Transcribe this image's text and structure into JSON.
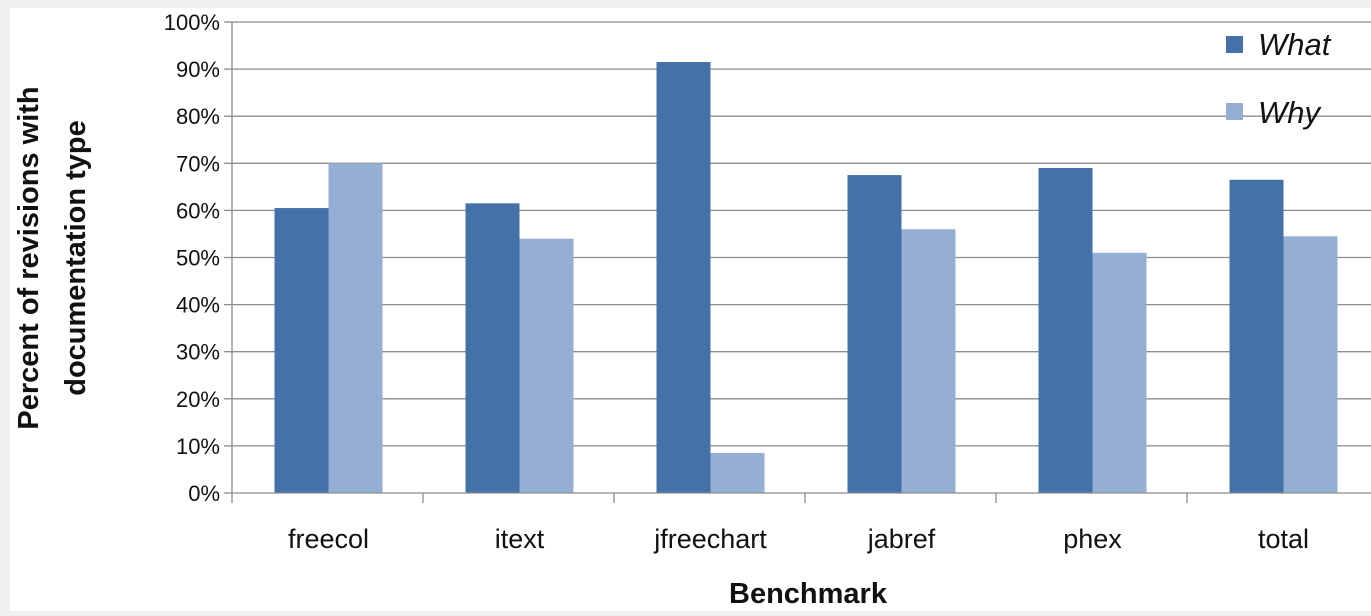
{
  "chart_data": {
    "type": "bar",
    "title": "",
    "xlabel": "Benchmark",
    "ylabel_line1": "Percent of revisions with",
    "ylabel_line2": "documentation type",
    "ylim": [
      0,
      100
    ],
    "yticks": [
      "0%",
      "10%",
      "20%",
      "30%",
      "40%",
      "50%",
      "60%",
      "70%",
      "80%",
      "90%",
      "100%"
    ],
    "categories": [
      "freecol",
      "itext",
      "jfreechart",
      "jabref",
      "phex",
      "total"
    ],
    "series": [
      {
        "name": "What",
        "color": "#4472a8",
        "values": [
          60.5,
          61.5,
          91.5,
          67.5,
          69,
          66.5
        ]
      },
      {
        "name": "Why",
        "color": "#95aed4",
        "values": [
          70,
          54,
          8.5,
          56,
          51,
          54.5
        ]
      }
    ],
    "grid": true,
    "legend_position": "top-right"
  }
}
